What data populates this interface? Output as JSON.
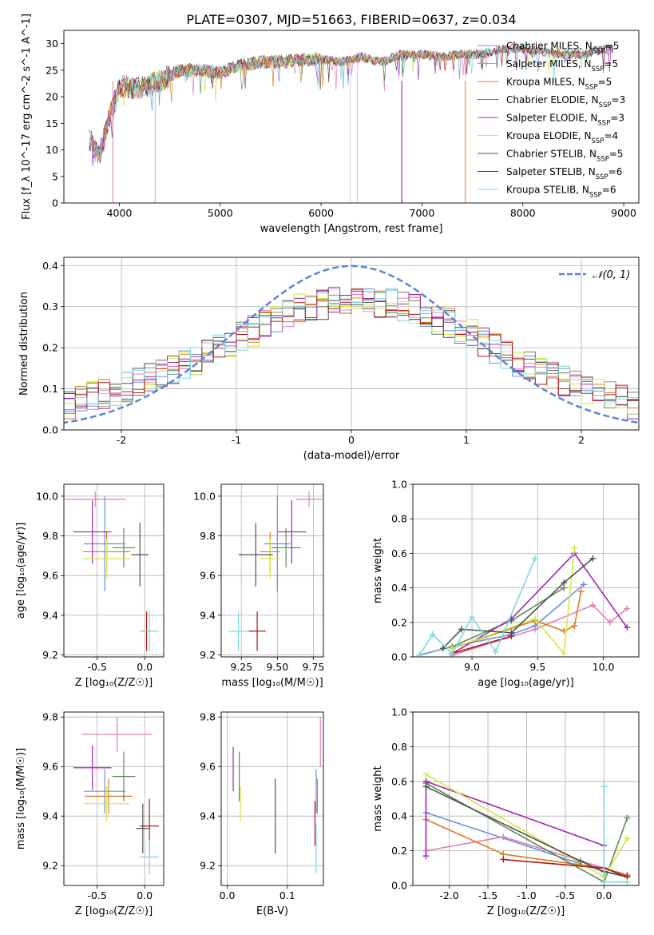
{
  "figure": {
    "title": "PLATE=0307, MJD=51663, FIBERID=0637, z=0.034"
  },
  "colors": {
    "Chabrier MILES": "#6a8fdc",
    "Salpeter MILES": "#e080b4",
    "Kroupa MILES": "#dc7a28",
    "Chabrier ELODIE": "#5f8a5c",
    "Salpeter ELODIE": "#9e28b4",
    "Kroupa ELODIE": "#d4e642",
    "Chabrier STELIB": "#505050",
    "Salpeter STELIB": "#b01818",
    "Kroupa STELIB": "#7ed8dc",
    "grid": "#b0b0b0",
    "gaussian": "#5b86d6"
  },
  "chart_data": [
    {
      "id": "spectrum",
      "type": "line",
      "title": "PLATE=0307, MJD=51663, FIBERID=0637, z=0.034",
      "xlabel": "wavelength [Angstrom, rest frame]",
      "ylabel": "Flux [f_λ 10^-17 erg cm^-2 s^-1 A^-1]",
      "xlim": [
        3450,
        9150
      ],
      "ylim": [
        0,
        32.5
      ],
      "xticks": [
        4000,
        5000,
        6000,
        7000,
        8000,
        9000
      ],
      "yticks": [
        0,
        5,
        10,
        15,
        20,
        25,
        30
      ],
      "grid": false,
      "legend_position": "top-right",
      "data_envelope": {
        "x": [
          3700,
          3800,
          3900,
          4000,
          4200,
          4400,
          4600,
          4800,
          5000,
          5200,
          5400,
          5600,
          5800,
          6000,
          6200,
          6400,
          6600,
          6800,
          7000,
          7200,
          7400,
          7600,
          7800,
          8000,
          8200,
          8400,
          8600,
          8800
        ],
        "y": [
          12,
          9,
          16,
          22,
          21.5,
          23,
          25,
          25,
          24.5,
          26,
          26.5,
          26.5,
          27,
          27,
          26.5,
          27.5,
          26.5,
          28,
          28,
          27.5,
          28,
          28,
          29,
          29,
          28.5,
          28,
          28,
          29
        ]
      },
      "series": [
        {
          "name": "Chabrier MILES, N_SSP=5"
        },
        {
          "name": "Salpeter MILES, N_SSP=5"
        },
        {
          "name": "Kroupa MILES, N_SSP=5"
        },
        {
          "name": "Chabrier ELODIE, N_SSP=3"
        },
        {
          "name": "Salpeter ELODIE, N_SSP=3"
        },
        {
          "name": "Kroupa ELODIE, N_SSP=4"
        },
        {
          "name": "Chabrier STELIB, N_SSP=5"
        },
        {
          "name": "Salpeter STELIB, N_SSP=6"
        },
        {
          "name": "Kroupa STELIB, N_SSP=6"
        }
      ]
    },
    {
      "id": "residuals",
      "type": "step",
      "xlabel": "(data-model)/error",
      "ylabel": "Normed distribution",
      "xlim": [
        -2.5,
        2.5
      ],
      "ylim": [
        0,
        0.42
      ],
      "xticks": [
        -2,
        -1,
        0,
        1,
        2
      ],
      "yticks": [
        0.0,
        0.1,
        0.2,
        0.3,
        0.4
      ],
      "grid": true,
      "legend": "𝒩(0, 1)",
      "legend_position": "top-right",
      "histogram_envelope": {
        "x": [
          -2.5,
          -2.0,
          -1.5,
          -1.0,
          -0.5,
          0.0,
          0.5,
          1.0,
          1.5,
          2.0,
          2.5
        ],
        "y": [
          0.06,
          0.1,
          0.15,
          0.22,
          0.29,
          0.32,
          0.3,
          0.24,
          0.16,
          0.1,
          0.06
        ]
      }
    },
    {
      "id": "age_vs_Z",
      "type": "errorbar",
      "xlabel": "Z [log₁₀(Z/Z☉)]",
      "ylabel": "age  [log₁₀(age/yr)]",
      "xlim": [
        -0.85,
        0.2
      ],
      "ylim": [
        9.19,
        10.06
      ],
      "xticks": [
        -0.5,
        0.0
      ],
      "yticks": [
        9.2,
        9.4,
        9.6,
        9.8,
        10.0
      ],
      "points": [
        {
          "model": "Chabrier MILES",
          "x": -0.42,
          "xerr": 0.22,
          "y": 9.76,
          "yerr": 0.24
        },
        {
          "model": "Salpeter MILES",
          "x": -0.52,
          "xerr": 0.32,
          "y": 9.985,
          "yerr": 0.04
        },
        {
          "model": "Kroupa MILES",
          "x": -0.4,
          "xerr": 0.25,
          "y": 9.72,
          "yerr": 0.1
        },
        {
          "model": "Chabrier ELODIE",
          "x": -0.22,
          "xerr": 0.12,
          "y": 9.74,
          "yerr": 0.1
        },
        {
          "model": "Salpeter ELODIE",
          "x": -0.55,
          "xerr": 0.2,
          "y": 9.82,
          "yerr": 0.16
        },
        {
          "model": "Kroupa ELODIE",
          "x": -0.4,
          "xerr": 0.25,
          "y": 9.685,
          "yerr": 0.1
        },
        {
          "model": "Chabrier STELIB",
          "x": -0.05,
          "xerr": 0.09,
          "y": 9.705,
          "yerr": 0.16
        },
        {
          "model": "Salpeter STELIB",
          "x": 0.02,
          "xerr": 0.05,
          "y": 9.32,
          "yerr": 0.1
        },
        {
          "model": "Kroupa STELIB",
          "x": 0.05,
          "xerr": 0.1,
          "y": 9.32,
          "yerr": 0.1
        }
      ]
    },
    {
      "id": "age_vs_mass",
      "type": "errorbar",
      "xlabel": "mass [log₁₀(M/M☉)]",
      "xlim": [
        9.11,
        9.82
      ],
      "ylim": [
        9.19,
        10.06
      ],
      "xticks": [
        9.25,
        9.5,
        9.75
      ],
      "yticks": [
        9.2,
        9.4,
        9.6,
        9.8,
        10.0
      ],
      "points": [
        {
          "model": "Chabrier MILES",
          "x": 9.5,
          "xerr": 0.09,
          "y": 9.76,
          "yerr": 0.24
        },
        {
          "model": "Salpeter MILES",
          "x": 9.72,
          "xerr": 0.09,
          "y": 9.985,
          "yerr": 0.04
        },
        {
          "model": "Kroupa MILES",
          "x": 9.45,
          "xerr": 0.07,
          "y": 9.72,
          "yerr": 0.1
        },
        {
          "model": "Chabrier ELODIE",
          "x": 9.56,
          "xerr": 0.1,
          "y": 9.74,
          "yerr": 0.1
        },
        {
          "model": "Salpeter ELODIE",
          "x": 9.6,
          "xerr": 0.1,
          "y": 9.82,
          "yerr": 0.16
        },
        {
          "model": "Kroupa ELODIE",
          "x": 9.45,
          "xerr": 0.07,
          "y": 9.685,
          "yerr": 0.1
        },
        {
          "model": "Chabrier STELIB",
          "x": 9.35,
          "xerr": 0.12,
          "y": 9.705,
          "yerr": 0.16
        },
        {
          "model": "Salpeter STELIB",
          "x": 9.36,
          "xerr": 0.06,
          "y": 9.32,
          "yerr": 0.1
        },
        {
          "model": "Kroupa STELIB",
          "x": 9.23,
          "xerr": 0.07,
          "y": 9.32,
          "yerr": 0.1
        }
      ]
    },
    {
      "id": "weight_vs_age",
      "type": "line",
      "xlabel": "age  [log₁₀(age/yr)]",
      "ylabel": "mass weight",
      "xlim": [
        8.55,
        10.27
      ],
      "ylim": [
        0.0,
        1.0
      ],
      "xticks": [
        9.0,
        9.5,
        10.0
      ],
      "yticks": [
        0.0,
        0.2,
        0.4,
        0.6,
        0.8,
        1.0
      ],
      "series": [
        {
          "model": "Chabrier MILES",
          "x": [
            8.6,
            8.85,
            9.3,
            9.48,
            9.85
          ],
          "y": [
            0.01,
            0.06,
            0.13,
            0.18,
            0.42
          ]
        },
        {
          "model": "Salpeter MILES",
          "x": [
            8.85,
            9.48,
            9.92,
            10.05,
            10.18
          ],
          "y": [
            0.01,
            0.16,
            0.3,
            0.2,
            0.28
          ]
        },
        {
          "model": "Kroupa MILES",
          "x": [
            8.85,
            9.48,
            9.7,
            9.78,
            9.83
          ],
          "y": [
            0.05,
            0.21,
            0.15,
            0.18,
            0.38
          ]
        },
        {
          "model": "Chabrier ELODIE",
          "x": [
            8.85,
            9.3,
            9.7
          ],
          "y": [
            0.06,
            0.21,
            0.4
          ]
        },
        {
          "model": "Salpeter ELODIE",
          "x": [
            8.85,
            9.3,
            9.78,
            10.18
          ],
          "y": [
            0.02,
            0.22,
            0.6,
            0.17
          ]
        },
        {
          "model": "Kroupa ELODIE",
          "x": [
            8.85,
            9.48,
            9.7,
            9.78
          ],
          "y": [
            0.05,
            0.22,
            0.02,
            0.63
          ]
        },
        {
          "model": "Chabrier STELIB",
          "x": [
            8.78,
            8.92,
            9.3,
            9.7,
            9.92
          ],
          "y": [
            0.05,
            0.16,
            0.14,
            0.43,
            0.57
          ]
        },
        {
          "model": "Salpeter STELIB",
          "x": [
            8.85,
            9.3
          ],
          "y": [
            0.02,
            0.12
          ]
        },
        {
          "model": "Kroupa STELIB",
          "x": [
            8.6,
            8.7,
            8.85,
            9.0,
            9.18,
            9.48
          ],
          "y": [
            0.01,
            0.13,
            0.02,
            0.23,
            0.03,
            0.57
          ]
        }
      ]
    },
    {
      "id": "mass_vs_Z",
      "type": "errorbar",
      "xlabel": "Z [log₁₀(Z/Z☉)]",
      "ylabel": "mass [log₁₀(M/M☉)]",
      "xlim": [
        -0.85,
        0.2
      ],
      "ylim": [
        9.12,
        9.82
      ],
      "xticks": [
        -0.5,
        0.0
      ],
      "yticks": [
        9.2,
        9.4,
        9.6,
        9.8
      ],
      "points": [
        {
          "model": "Chabrier MILES",
          "x": -0.42,
          "xerr": 0.22,
          "y": 9.5,
          "yerr": 0.09
        },
        {
          "model": "Salpeter MILES",
          "x": -0.29,
          "xerr": 0.37,
          "y": 9.73,
          "yerr": 0.07
        },
        {
          "model": "Kroupa MILES",
          "x": -0.38,
          "xerr": 0.25,
          "y": 9.48,
          "yerr": 0.07
        },
        {
          "model": "Chabrier ELODIE",
          "x": -0.22,
          "xerr": 0.12,
          "y": 9.56,
          "yerr": 0.1
        },
        {
          "model": "Salpeter ELODIE",
          "x": -0.55,
          "xerr": 0.2,
          "y": 9.595,
          "yerr": 0.09
        },
        {
          "model": "Kroupa ELODIE",
          "x": -0.4,
          "xerr": 0.24,
          "y": 9.45,
          "yerr": 0.07
        },
        {
          "model": "Chabrier STELIB",
          "x": -0.02,
          "xerr": 0.07,
          "y": 9.35,
          "yerr": 0.1
        },
        {
          "model": "Salpeter STELIB",
          "x": 0.05,
          "xerr": 0.1,
          "y": 9.36,
          "yerr": 0.11
        },
        {
          "model": "Kroupa STELIB",
          "x": 0.05,
          "xerr": 0.1,
          "y": 9.235,
          "yerr": 0.07
        }
      ]
    },
    {
      "id": "mass_vs_ebv",
      "type": "errorbar",
      "xlabel": "E(B-V)",
      "xlim": [
        -0.01,
        0.16
      ],
      "ylim": [
        9.12,
        9.82
      ],
      "xticks": [
        0.0,
        0.1
      ],
      "yticks": [
        9.2,
        9.4,
        9.6,
        9.8
      ],
      "points": [
        {
          "model": "Chabrier MILES",
          "x": 0.148,
          "y": 9.5,
          "yerr": 0.09
        },
        {
          "model": "Salpeter MILES",
          "x": 0.155,
          "y": 9.7,
          "yerr": 0.1
        },
        {
          "model": "Kroupa MILES",
          "x": 0.15,
          "y": 9.48,
          "yerr": 0.07
        },
        {
          "model": "Chabrier ELODIE",
          "x": 0.02,
          "y": 9.56,
          "yerr": 0.1
        },
        {
          "model": "Salpeter ELODIE",
          "x": 0.01,
          "y": 9.59,
          "yerr": 0.09
        },
        {
          "model": "Kroupa ELODIE",
          "x": 0.022,
          "y": 9.45,
          "yerr": 0.07
        },
        {
          "model": "Chabrier STELIB",
          "x": 0.08,
          "y": 9.4,
          "yerr": 0.15
        },
        {
          "model": "Salpeter STELIB",
          "x": 0.146,
          "y": 9.37,
          "yerr": 0.09
        },
        {
          "model": "Kroupa STELIB",
          "x": 0.148,
          "y": 9.27,
          "yerr": 0.1
        }
      ]
    },
    {
      "id": "weight_vs_Z",
      "type": "line",
      "xlabel": "Z [log₁₀(Z/Z☉)]",
      "ylabel": "mass weight",
      "xlim": [
        -2.47,
        0.45
      ],
      "ylim": [
        0.0,
        1.0
      ],
      "xticks": [
        -2.0,
        -1.5,
        -1.0,
        -0.5,
        0.0
      ],
      "yticks": [
        0.0,
        0.2,
        0.4,
        0.6,
        0.8,
        1.0
      ],
      "series": [
        {
          "model": "Chabrier MILES",
          "x": [
            -2.3,
            0.0,
            0.3
          ],
          "y": [
            0.42,
            0.08,
            0.05
          ]
        },
        {
          "model": "Salpeter MILES",
          "x": [
            -2.3,
            -1.3,
            0.0,
            0.3
          ],
          "y": [
            0.2,
            0.28,
            0.1,
            0.06
          ]
        },
        {
          "model": "Kroupa MILES",
          "x": [
            -2.3,
            -1.3,
            0.0,
            0.3
          ],
          "y": [
            0.38,
            0.18,
            0.1,
            0.06
          ]
        },
        {
          "model": "Chabrier ELODIE",
          "x": [
            -2.3,
            0.0,
            0.3
          ],
          "y": [
            0.59,
            0.02,
            0.39
          ]
        },
        {
          "model": "Salpeter ELODIE",
          "x": [
            -2.3,
            -2.3,
            0.0
          ],
          "y": [
            0.17,
            0.6,
            0.23
          ]
        },
        {
          "model": "Kroupa ELODIE",
          "x": [
            -2.3,
            0.0,
            0.3
          ],
          "y": [
            0.64,
            0.05,
            0.27
          ]
        },
        {
          "model": "Chabrier STELIB",
          "x": [
            -2.3,
            -0.3,
            0.0,
            0.3
          ],
          "y": [
            0.57,
            0.14,
            0.08,
            0.05
          ]
        },
        {
          "model": "Salpeter STELIB",
          "x": [
            -1.3,
            0.0,
            0.3
          ],
          "y": [
            0.15,
            0.1,
            0.05
          ]
        },
        {
          "model": "Kroupa STELIB",
          "x": [
            0.0,
            0.0,
            0.3
          ],
          "y": [
            0.57,
            0.02,
            0.02
          ]
        }
      ]
    }
  ]
}
